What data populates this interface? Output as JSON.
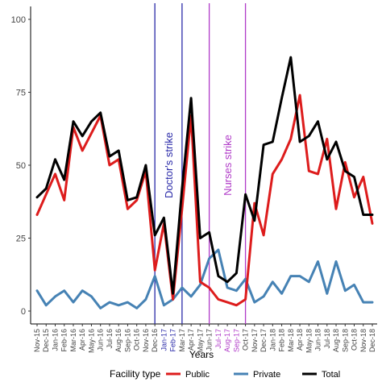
{
  "chart_data": {
    "type": "line",
    "xlabel": "Years",
    "ylabel": "",
    "ylim": [
      0,
      100
    ],
    "yticks": [
      0,
      25,
      50,
      75,
      100
    ],
    "grid": false,
    "legend_position": "bottom",
    "legend_title": "Facility type",
    "categories": [
      "Nov-15",
      "Dec-15",
      "Jan-16",
      "Feb-16",
      "Mar-16",
      "Apr-16",
      "May-16",
      "Jun-16",
      "Jul-16",
      "Aug-16",
      "Sep-16",
      "Oct-16",
      "Nov-16",
      "Dec-16",
      "Jan-17",
      "Feb-17",
      "Mar-17",
      "Apr-17",
      "May-17",
      "Jun-17",
      "Jul-17",
      "Aug-17",
      "Sep-17",
      "Oct-17",
      "Nov-17",
      "Dec-17",
      "Jan-18",
      "Feb-18",
      "Mar-18",
      "Apr-18",
      "May-18",
      "Jun-18",
      "Jul-18",
      "Aug-18",
      "Sep-18",
      "Oct-18",
      "Nov-18",
      "Dec-18"
    ],
    "series": [
      {
        "name": "Public",
        "color": "#dd1c1c",
        "values": [
          33,
          40,
          47,
          38,
          63,
          55,
          61,
          67,
          50,
          52,
          35,
          38,
          48,
          14,
          30,
          4,
          35,
          67,
          10,
          8,
          4,
          3,
          2,
          4,
          37,
          26,
          47,
          52,
          59,
          74,
          48,
          47,
          59,
          35,
          51,
          39,
          46,
          30
        ]
      },
      {
        "name": "Private",
        "color": "#4682b4",
        "values": [
          7,
          2,
          5,
          7,
          3,
          7,
          5,
          1,
          3,
          2,
          3,
          1,
          4,
          12,
          2,
          4,
          8,
          5,
          9,
          18,
          21,
          8,
          7,
          11,
          3,
          5,
          10,
          6,
          12,
          12,
          10,
          17,
          6,
          17,
          7,
          9,
          3,
          3
        ]
      },
      {
        "name": "Total",
        "color": "#000000",
        "values": [
          39,
          42,
          52,
          45,
          65,
          60,
          65,
          68,
          53,
          55,
          38,
          39,
          50,
          26,
          32,
          6,
          42,
          73,
          25,
          27,
          12,
          10,
          13,
          40,
          31,
          57,
          58,
          73,
          87,
          58,
          60,
          65,
          52,
          58,
          48,
          46,
          33,
          33
        ]
      }
    ],
    "annotations": [
      {
        "label": "Doctor's strike",
        "x_from": "Dec-16",
        "x_to": "Mar-17",
        "color": "#2a2aa8"
      },
      {
        "label": "Nurses strike",
        "x_from": "Jun-17",
        "x_to": "Oct-17",
        "color": "#b03bc8"
      }
    ]
  }
}
